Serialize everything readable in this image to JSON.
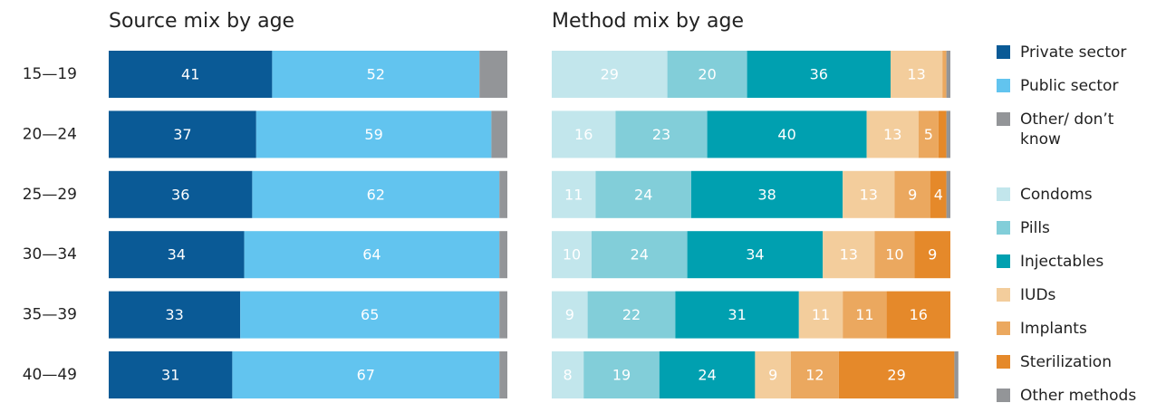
{
  "chart_data": [
    {
      "type": "stacked-bar-horizontal",
      "title": "Source mix by age",
      "categories": [
        "15—19",
        "20—24",
        "25—29",
        "30—34",
        "35—39",
        "40—49"
      ],
      "xlim": [
        0,
        100
      ],
      "series": [
        {
          "name": "Private sector",
          "color": "#0a5a96",
          "values": [
            41,
            37,
            36,
            34,
            33,
            31
          ],
          "value_labels": [
            "41",
            "37",
            "36",
            "34",
            "33",
            "31"
          ]
        },
        {
          "name": "Public sector",
          "color": "#62c4ef",
          "values": [
            52,
            59,
            62,
            64,
            65,
            67
          ],
          "value_labels": [
            "52",
            "59",
            "62",
            "64",
            "65",
            "67"
          ]
        },
        {
          "name": "Other/ don’t know",
          "color": "#939598",
          "values": [
            7,
            4,
            2,
            2,
            2,
            2
          ]
        }
      ]
    },
    {
      "type": "stacked-bar-horizontal",
      "title": "Method mix by age",
      "xlim": [
        0,
        100
      ],
      "series": [
        {
          "name": "Condoms",
          "color": "#c2e6ec",
          "values": [
            29,
            16,
            11,
            10,
            9,
            8
          ],
          "value_labels": [
            "29",
            "16",
            "11",
            "10",
            "9",
            "8"
          ]
        },
        {
          "name": "Pills",
          "color": "#82ced9",
          "values": [
            20,
            23,
            24,
            24,
            22,
            19
          ],
          "value_labels": [
            "20",
            "23",
            "24",
            "24",
            "22",
            "19"
          ]
        },
        {
          "name": "Injectables",
          "color": "#00a0b0",
          "values": [
            36,
            40,
            38,
            34,
            31,
            24
          ],
          "value_labels": [
            "36",
            "40",
            "38",
            "34",
            "31",
            "24"
          ]
        },
        {
          "name": "IUDs",
          "color": "#f3cd9c",
          "values": [
            13,
            13,
            13,
            13,
            11,
            9
          ],
          "value_labels": [
            "13",
            "13",
            "13",
            "13",
            "11",
            "9"
          ]
        },
        {
          "name": "Implants",
          "color": "#eba85f",
          "values": [
            1,
            5,
            9,
            10,
            11,
            12
          ],
          "value_labels": [
            null,
            "5",
            "9",
            "10",
            "11",
            "12"
          ]
        },
        {
          "name": "Sterilization",
          "color": "#e5892a",
          "values": [
            0,
            2,
            4,
            9,
            16,
            29
          ],
          "value_labels": [
            null,
            null,
            "4",
            "9",
            "16",
            "29"
          ]
        },
        {
          "name": "Other methods",
          "color": "#939598",
          "values": [
            1,
            1,
            1,
            0,
            0,
            1
          ]
        }
      ]
    }
  ]
}
